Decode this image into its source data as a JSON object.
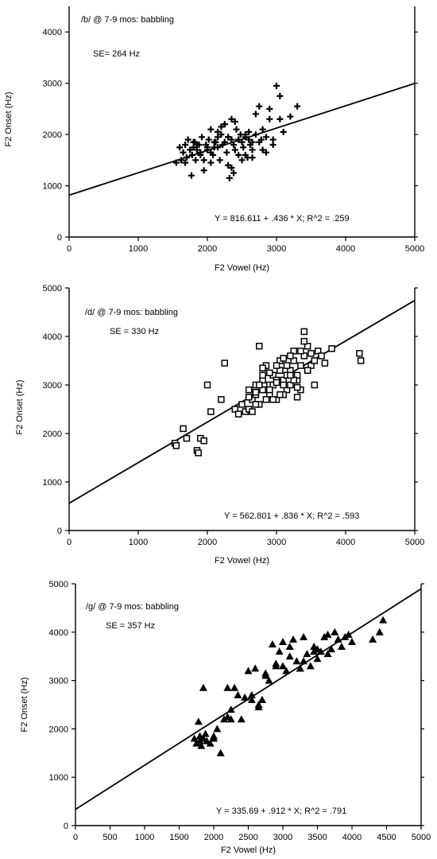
{
  "chart_data": [
    {
      "type": "scatter",
      "title": "/b/ @ 7-9 mos: babbling",
      "se_text": "SE= 264 Hz",
      "equation": "Y = 816.611 + .436 * X; R^2 = .259",
      "intercept": 816.611,
      "slope": 0.436,
      "xlabel": "F2 Vowel (Hz)",
      "ylabel": "F2 Onset (Hz)",
      "xlim": [
        0,
        5000
      ],
      "ylim": [
        0,
        4500
      ],
      "xticks": [
        0,
        1000,
        2000,
        3000,
        4000,
        5000
      ],
      "xtick_labels": [
        "0",
        "1000",
        "2000",
        "3000",
        "4000",
        "5000"
      ],
      "yticks": [
        0,
        1000,
        2000,
        3000,
        4000
      ],
      "ytick_labels": [
        "0",
        "1000",
        "2000",
        "3000",
        "4000"
      ],
      "marker": "plus",
      "x": [
        1550,
        1600,
        1620,
        1650,
        1680,
        1700,
        1720,
        1750,
        1770,
        1780,
        1800,
        1820,
        1830,
        1850,
        1880,
        1900,
        1920,
        1950,
        1980,
        2000,
        2020,
        2050,
        2080,
        2100,
        2120,
        2150,
        2180,
        2200,
        2220,
        2250,
        2280,
        2300,
        2320,
        2350,
        2380,
        2400,
        2420,
        2450,
        2480,
        2500,
        2520,
        2550,
        2580,
        2600,
        2620,
        2650,
        2700,
        2750,
        2780,
        2800,
        2850,
        2900,
        2950,
        3000,
        3050,
        1950,
        2050,
        2150,
        2250,
        2350,
        2450,
        2550,
        2650,
        1850,
        1750,
        1680,
        2100,
        2300,
        2500,
        2700,
        2900,
        3100,
        3200,
        3300,
        2400,
        2600,
        2800,
        2000,
        2200,
        2380,
        2850,
        3050,
        1900,
        2250,
        2450,
        2650,
        2750,
        2950,
        1800,
        2150,
        2350,
        2550,
        2050,
        2300
      ],
      "y": [
        1450,
        1750,
        1500,
        1650,
        1800,
        1550,
        1900,
        1700,
        1200,
        1600,
        1750,
        1850,
        1500,
        1700,
        1800,
        1650,
        1950,
        1500,
        1800,
        1700,
        1900,
        2100,
        1600,
        1750,
        1850,
        1950,
        1500,
        2000,
        1800,
        2200,
        1650,
        1950,
        1150,
        2300,
        1800,
        1700,
        2100,
        1600,
        2000,
        1850,
        1750,
        1950,
        1550,
        1900,
        1800,
        1700,
        2000,
        2550,
        1900,
        2100,
        1650,
        2300,
        1900,
        2950,
        2300,
        1300,
        1450,
        2050,
        2200,
        1350,
        1900,
        1600,
        1850,
        1800,
        1700,
        1450,
        1850,
        1400,
        1500,
        2400,
        2500,
        2050,
        2350,
        2550,
        2250,
        2050,
        1700,
        1750,
        2150,
        1250,
        1950,
        2750,
        1600,
        1850,
        1900,
        1550,
        1850,
        1800,
        1850,
        1750,
        1900,
        2000,
        1650,
        1950
      ]
    },
    {
      "type": "scatter",
      "title": "/d/ @ 7-9 mos: babbling",
      "se_text": "SE = 330 Hz",
      "equation": "Y = 562.801 + .836 * X; R^2 = .593",
      "intercept": 562.801,
      "slope": 0.836,
      "xlabel": "F2 Vowel (Hz)",
      "ylabel": "F2 Onset (Hz)",
      "xlim": [
        0,
        5000
      ],
      "ylim": [
        0,
        5000
      ],
      "xticks": [
        0,
        1000,
        2000,
        3000,
        4000,
        5000
      ],
      "xtick_labels": [
        "0",
        "1000",
        "2000",
        "3000",
        "4000",
        "5000"
      ],
      "yticks": [
        0,
        1000,
        2000,
        3000,
        4000,
        5000
      ],
      "ytick_labels": [
        "0",
        "1000",
        "2000",
        "3000",
        "4000",
        "5000"
      ],
      "marker": "square",
      "x": [
        1530,
        1550,
        1650,
        1700,
        1850,
        1870,
        1900,
        1950,
        2000,
        2050,
        2200,
        2250,
        2400,
        2450,
        2500,
        2550,
        2600,
        2650,
        2700,
        2750,
        2800,
        2850,
        2900,
        2950,
        3000,
        3050,
        3100,
        3150,
        3200,
        3250,
        3300,
        3350,
        3400,
        3450,
        3500,
        3550,
        3600,
        3650,
        3700,
        3800,
        4200,
        4220,
        2600,
        2700,
        2750,
        2800,
        2850,
        2900,
        2950,
        3000,
        3050,
        3100,
        3150,
        3200,
        3250,
        3300,
        3350,
        3400,
        2650,
        2750,
        2850,
        2950,
        3050,
        3150,
        3250,
        3350,
        3450,
        2700,
        2800,
        2900,
        3000,
        3100,
        3200,
        3300,
        3400,
        3500,
        3000,
        3100,
        2900,
        2800,
        3200,
        3300,
        3450,
        3550,
        2600,
        2700
      ],
      "y": [
        1800,
        1750,
        2100,
        1900,
        1650,
        1600,
        1900,
        1850,
        3000,
        2450,
        2700,
        3450,
        2500,
        2400,
        2600,
        2450,
        2900,
        2700,
        3000,
        3800,
        3100,
        2900,
        2800,
        3200,
        2700,
        3500,
        3100,
        2900,
        3300,
        3700,
        3100,
        3400,
        4100,
        3800,
        3400,
        3500,
        3700,
        3600,
        3450,
        3750,
        3650,
        3500,
        2500,
        2800,
        2600,
        2900,
        3400,
        3000,
        2700,
        3100,
        3300,
        2800,
        3200,
        3000,
        3500,
        3200,
        2900,
        3600,
        2450,
        3000,
        2700,
        3000,
        2800,
        3400,
        3100,
        3700,
        3300,
        2600,
        3200,
        2900,
        3400,
        3000,
        3600,
        2750,
        3900,
        3650,
        3050,
        3550,
        3250,
        3350,
        3200,
        2950,
        3300,
        3000,
        2750,
        2850
      ]
    },
    {
      "type": "scatter",
      "title": "/g/ @ 7-9 mos: babbling",
      "se_text": "SE = 357 Hz",
      "equation": "Y = 335.69 + .912 * X; R^2 = .791",
      "intercept": 335.69,
      "slope": 0.912,
      "xlabel": "F2 Vowel (Hz)",
      "ylabel": "F2 Onset (Hz)",
      "xlim": [
        0,
        5000
      ],
      "ylim": [
        0,
        5000
      ],
      "xticks": [
        0,
        500,
        1000,
        1500,
        2000,
        2500,
        3000,
        3500,
        4000,
        4500,
        5000
      ],
      "xtick_labels": [
        "0",
        "500",
        "1000",
        "1500",
        "2000",
        "2500",
        "3000",
        "3500",
        "4000",
        "4500",
        "5000"
      ],
      "yticks": [
        0,
        1000,
        2000,
        3000,
        4000,
        5000
      ],
      "ytick_labels": [
        "0",
        "1000",
        "2000",
        "3000",
        "4000",
        "5000"
      ],
      "marker": "triangle",
      "x": [
        1720,
        1750,
        1780,
        1800,
        1820,
        1850,
        1880,
        1900,
        1950,
        2000,
        2050,
        2100,
        2150,
        2200,
        2250,
        2300,
        2350,
        2400,
        2450,
        2500,
        2550,
        2600,
        2650,
        2700,
        2750,
        2800,
        2850,
        2900,
        2950,
        3000,
        3050,
        3100,
        3150,
        3200,
        3250,
        3300,
        3350,
        3400,
        3450,
        3500,
        3550,
        3600,
        3650,
        3700,
        3750,
        3800,
        3850,
        3900,
        3950,
        4000,
        4300,
        4400,
        4450,
        1850,
        2250,
        2650,
        2900,
        3100,
        3300,
        3500,
        2550,
        2750,
        3000,
        3250,
        3450,
        3650,
        2200,
        2700,
        2000,
        1800
      ],
      "y": [
        1800,
        1700,
        2150,
        1850,
        1650,
        2850,
        1900,
        1750,
        1700,
        1850,
        2000,
        1500,
        2200,
        2850,
        2400,
        2850,
        2700,
        2200,
        2650,
        3200,
        2700,
        3250,
        2450,
        2600,
        3150,
        3000,
        3750,
        3350,
        3600,
        3800,
        3200,
        3700,
        3850,
        3400,
        3250,
        3900,
        3550,
        3300,
        3700,
        3450,
        3600,
        3900,
        3550,
        3650,
        4000,
        3850,
        3700,
        3900,
        3950,
        3800,
        3850,
        4000,
        4250,
        1800,
        2200,
        2500,
        3300,
        3500,
        3400,
        3650,
        2600,
        3100,
        3300,
        3250,
        3600,
        3950,
        2250,
        2600,
        1800,
        1750
      ]
    }
  ]
}
